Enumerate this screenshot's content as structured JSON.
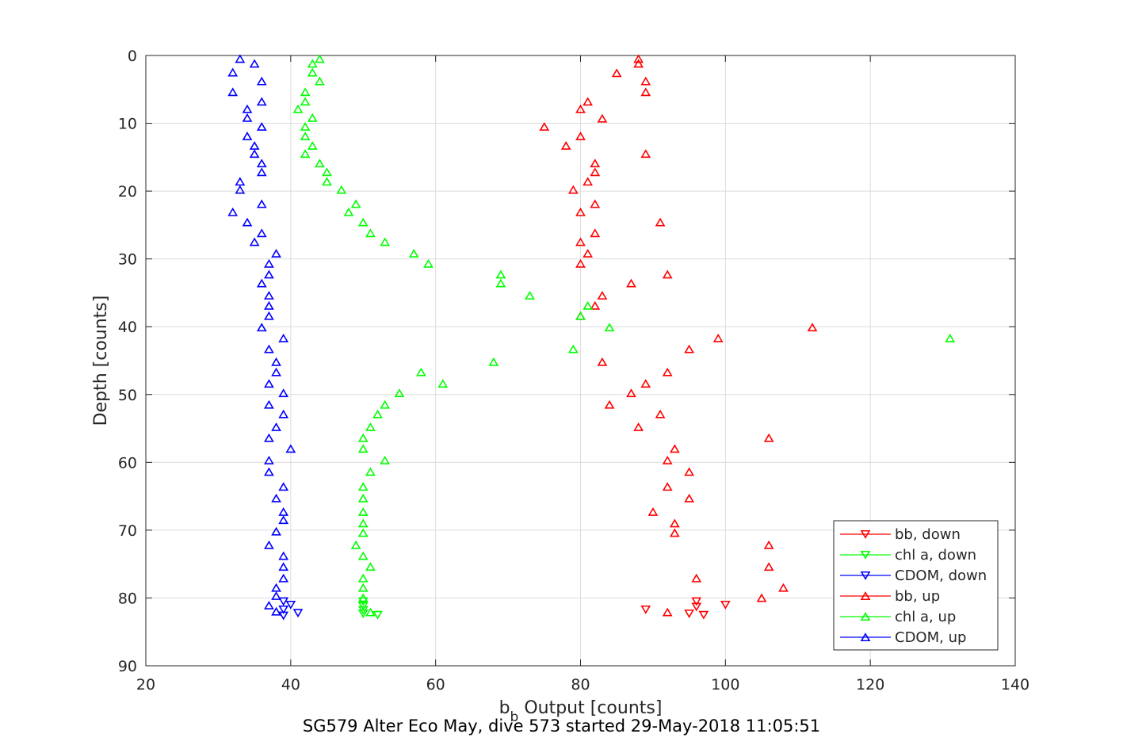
{
  "chart_data": {
    "type": "scatter",
    "xlabel_main": "b",
    "xlabel_sub": "b",
    "xlabel_rest": " Output [counts]",
    "ylabel": "Depth [counts]",
    "xlim": [
      20,
      140
    ],
    "ylim": [
      0,
      90
    ],
    "y_reversed": true,
    "x_ticks": [
      20,
      40,
      60,
      80,
      100,
      120,
      140
    ],
    "y_ticks": [
      0,
      10,
      20,
      30,
      40,
      50,
      60,
      70,
      80,
      90
    ],
    "grid": true,
    "legend_position": "bottom-right",
    "series": [
      {
        "name": "bb, down",
        "color": "#ff0000",
        "marker": "triangle-down",
        "points": [
          [
            96,
            80.5
          ],
          [
            100,
            81
          ],
          [
            96,
            81.3
          ],
          [
            89,
            81.7
          ],
          [
            97,
            82.5
          ],
          [
            95,
            82.3
          ]
        ]
      },
      {
        "name": "chl a, down",
        "color": "#00ff00",
        "marker": "triangle-down",
        "points": [
          [
            50,
            80.5
          ],
          [
            50,
            81.2
          ],
          [
            50,
            81.8
          ],
          [
            50,
            82.3
          ],
          [
            52,
            82.5
          ]
        ]
      },
      {
        "name": "CDOM, down",
        "color": "#0000ff",
        "marker": "triangle-down",
        "points": [
          [
            39,
            80.5
          ],
          [
            40,
            81
          ],
          [
            39,
            81.7
          ],
          [
            41,
            82.2
          ],
          [
            39,
            82.6
          ]
        ]
      },
      {
        "name": "bb, up",
        "color": "#ff0000",
        "marker": "triangle-up",
        "points": [
          [
            88,
            0.5
          ],
          [
            88,
            1.2
          ],
          [
            85,
            2.6
          ],
          [
            89,
            3.8
          ],
          [
            89,
            5.4
          ],
          [
            81,
            6.8
          ],
          [
            80,
            7.9
          ],
          [
            83,
            9.3
          ],
          [
            75,
            10.5
          ],
          [
            80,
            11.9
          ],
          [
            78,
            13.3
          ],
          [
            89,
            14.5
          ],
          [
            82,
            15.9
          ],
          [
            82,
            17.2
          ],
          [
            81,
            18.6
          ],
          [
            79,
            19.8
          ],
          [
            82,
            21.9
          ],
          [
            80,
            23.1
          ],
          [
            91,
            24.6
          ],
          [
            82,
            26.2
          ],
          [
            80,
            27.5
          ],
          [
            81,
            29.2
          ],
          [
            80,
            30.7
          ],
          [
            92,
            32.3
          ],
          [
            87,
            33.6
          ],
          [
            83,
            35.4
          ],
          [
            82,
            36.9
          ],
          [
            80,
            38.4
          ],
          [
            112,
            40.1
          ],
          [
            99,
            41.7
          ],
          [
            95,
            43.3
          ],
          [
            83,
            45.2
          ],
          [
            92,
            46.7
          ],
          [
            89,
            48.4
          ],
          [
            87,
            49.8
          ],
          [
            84,
            51.5
          ],
          [
            91,
            52.9
          ],
          [
            88,
            54.8
          ],
          [
            106,
            56.4
          ],
          [
            93,
            58.0
          ],
          [
            92,
            59.7
          ],
          [
            95,
            61.4
          ],
          [
            92,
            63.6
          ],
          [
            95,
            65.3
          ],
          [
            90,
            67.3
          ],
          [
            93,
            69.0
          ],
          [
            93,
            70.4
          ],
          [
            106,
            72.2
          ],
          [
            106,
            75.4
          ],
          [
            96,
            77.1
          ],
          [
            108,
            78.5
          ],
          [
            105,
            80.0
          ],
          [
            92,
            82.1
          ]
        ]
      },
      {
        "name": "chl a, up",
        "color": "#00ff00",
        "marker": "triangle-up",
        "points": [
          [
            44,
            0.5
          ],
          [
            43,
            1.2
          ],
          [
            43,
            2.5
          ],
          [
            44,
            3.8
          ],
          [
            42,
            5.4
          ],
          [
            42,
            6.8
          ],
          [
            41,
            7.9
          ],
          [
            43,
            9.2
          ],
          [
            42,
            10.5
          ],
          [
            42,
            11.9
          ],
          [
            43,
            13.3
          ],
          [
            42,
            14.5
          ],
          [
            44,
            15.9
          ],
          [
            45,
            17.2
          ],
          [
            45,
            18.6
          ],
          [
            47,
            19.8
          ],
          [
            49,
            21.9
          ],
          [
            48,
            23.1
          ],
          [
            50,
            24.6
          ],
          [
            51,
            26.2
          ],
          [
            53,
            27.5
          ],
          [
            57,
            29.2
          ],
          [
            59,
            30.7
          ],
          [
            69,
            32.3
          ],
          [
            69,
            33.6
          ],
          [
            73,
            35.4
          ],
          [
            81,
            36.9
          ],
          [
            80,
            38.4
          ],
          [
            84,
            40.1
          ],
          [
            131,
            41.7
          ],
          [
            79,
            43.3
          ],
          [
            68,
            45.2
          ],
          [
            58,
            46.7
          ],
          [
            61,
            48.4
          ],
          [
            55,
            49.8
          ],
          [
            53,
            51.5
          ],
          [
            52,
            52.9
          ],
          [
            51,
            54.8
          ],
          [
            50,
            56.4
          ],
          [
            50,
            58.0
          ],
          [
            53,
            59.7
          ],
          [
            51,
            61.4
          ],
          [
            50,
            63.6
          ],
          [
            50,
            65.3
          ],
          [
            50,
            67.3
          ],
          [
            50,
            69.0
          ],
          [
            50,
            70.4
          ],
          [
            49,
            72.2
          ],
          [
            50,
            73.8
          ],
          [
            51,
            75.4
          ],
          [
            50,
            77.1
          ],
          [
            50,
            78.5
          ],
          [
            50,
            80.0
          ],
          [
            51,
            82.1
          ]
        ]
      },
      {
        "name": "CDOM, up",
        "color": "#0000ff",
        "marker": "triangle-up",
        "points": [
          [
            33,
            0.5
          ],
          [
            35,
            1.2
          ],
          [
            32,
            2.5
          ],
          [
            36,
            3.8
          ],
          [
            32,
            5.4
          ],
          [
            36,
            6.8
          ],
          [
            34,
            7.9
          ],
          [
            34,
            9.2
          ],
          [
            36,
            10.5
          ],
          [
            34,
            11.9
          ],
          [
            35,
            13.3
          ],
          [
            35,
            14.5
          ],
          [
            36,
            15.9
          ],
          [
            36,
            17.2
          ],
          [
            33,
            18.6
          ],
          [
            33,
            19.8
          ],
          [
            36,
            21.9
          ],
          [
            32,
            23.1
          ],
          [
            34,
            24.6
          ],
          [
            36,
            26.2
          ],
          [
            35,
            27.5
          ],
          [
            38,
            29.2
          ],
          [
            37,
            30.7
          ],
          [
            37,
            32.3
          ],
          [
            36,
            33.6
          ],
          [
            37,
            35.4
          ],
          [
            37,
            36.9
          ],
          [
            37,
            38.4
          ],
          [
            36,
            40.1
          ],
          [
            39,
            41.7
          ],
          [
            37,
            43.3
          ],
          [
            38,
            45.2
          ],
          [
            38,
            46.7
          ],
          [
            37,
            48.4
          ],
          [
            39,
            49.8
          ],
          [
            37,
            51.5
          ],
          [
            39,
            52.9
          ],
          [
            38,
            54.8
          ],
          [
            37,
            56.4
          ],
          [
            40,
            58.0
          ],
          [
            37,
            59.7
          ],
          [
            37,
            61.4
          ],
          [
            39,
            63.6
          ],
          [
            38,
            65.3
          ],
          [
            39,
            67.3
          ],
          [
            39,
            68.5
          ],
          [
            38,
            70.2
          ],
          [
            37,
            72.2
          ],
          [
            39,
            73.8
          ],
          [
            39,
            75.4
          ],
          [
            39,
            77.1
          ],
          [
            38,
            78.5
          ],
          [
            38,
            79.7
          ],
          [
            37,
            81.1
          ],
          [
            38,
            82.0
          ]
        ]
      }
    ]
  },
  "caption": "SG579 Alter Eco May, dive 573 started 29-May-2018 11:05:51"
}
